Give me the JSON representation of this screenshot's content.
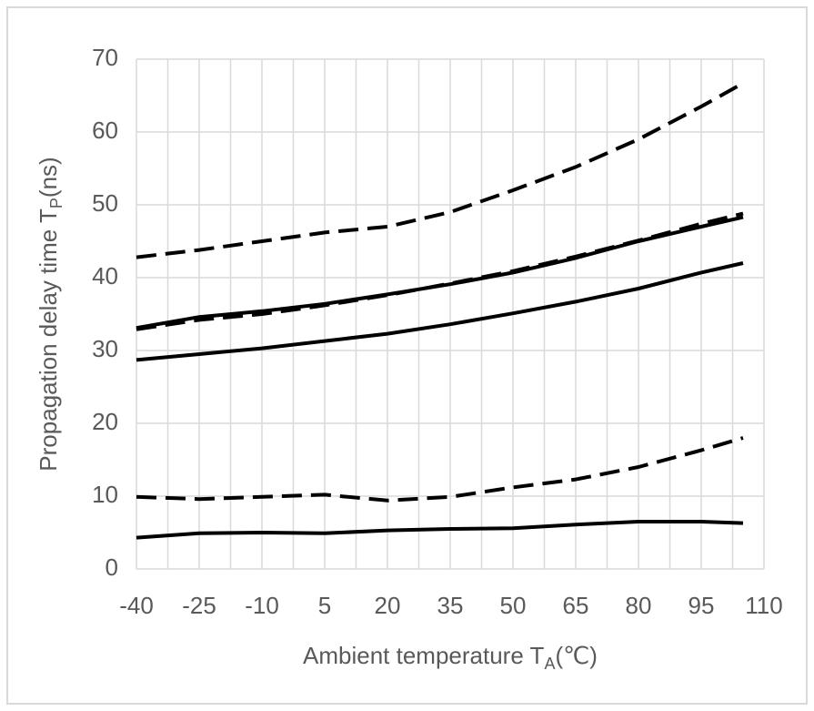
{
  "chart_data": {
    "type": "line",
    "x_label": {
      "text": "Ambient temperature T",
      "sub": "A",
      "after": "(℃)"
    },
    "y_label": {
      "text": "Propagation delay time T",
      "sub": "P",
      "after": "(ns)"
    },
    "x": [
      -40,
      -25,
      -10,
      5,
      20,
      35,
      50,
      65,
      80,
      95,
      105
    ],
    "series": [
      {
        "color": "#000000",
        "dashed": true,
        "values": [
          42.8,
          43.8,
          45,
          46.2,
          47,
          49,
          52,
          55.2,
          59,
          63.5,
          66.7
        ]
      },
      {
        "color": "#000000",
        "dashed": false,
        "values": [
          33.1,
          34.6,
          35.4,
          36.4,
          37.7,
          39.1,
          40.7,
          42.7,
          45,
          47,
          48.3
        ]
      },
      {
        "color": "#000000",
        "dashed": true,
        "values": [
          32.9,
          34.2,
          35,
          36.2,
          37.6,
          39.2,
          40.9,
          42.9,
          45.1,
          47.4,
          48.8
        ]
      },
      {
        "color": "#000000",
        "dashed": false,
        "values": [
          28.7,
          29.5,
          30.3,
          31.3,
          32.3,
          33.6,
          35.1,
          36.7,
          38.5,
          40.7,
          42
        ]
      },
      {
        "color": "#000000",
        "dashed": true,
        "values": [
          9.9,
          9.6,
          9.9,
          10.2,
          9.4,
          9.9,
          11.2,
          12.3,
          14,
          16.3,
          18
        ]
      },
      {
        "color": "#000000",
        "dashed": false,
        "values": [
          4.3,
          4.9,
          5,
          4.9,
          5.3,
          5.5,
          5.6,
          6.1,
          6.5,
          6.5,
          6.3
        ]
      }
    ],
    "xlim": [
      -40,
      110
    ],
    "xticks": [
      -40,
      -25,
      -10,
      5,
      20,
      35,
      50,
      65,
      80,
      95,
      110
    ],
    "x_minor_ticks": [
      -32.5,
      -17.5,
      -2.5,
      12.5,
      27.5,
      42.5,
      57.5,
      72.5,
      87.5,
      102.5
    ],
    "ylim": [
      0,
      70
    ],
    "yticks": [
      0,
      10,
      20,
      30,
      40,
      50,
      60,
      70
    ],
    "grid": true
  }
}
